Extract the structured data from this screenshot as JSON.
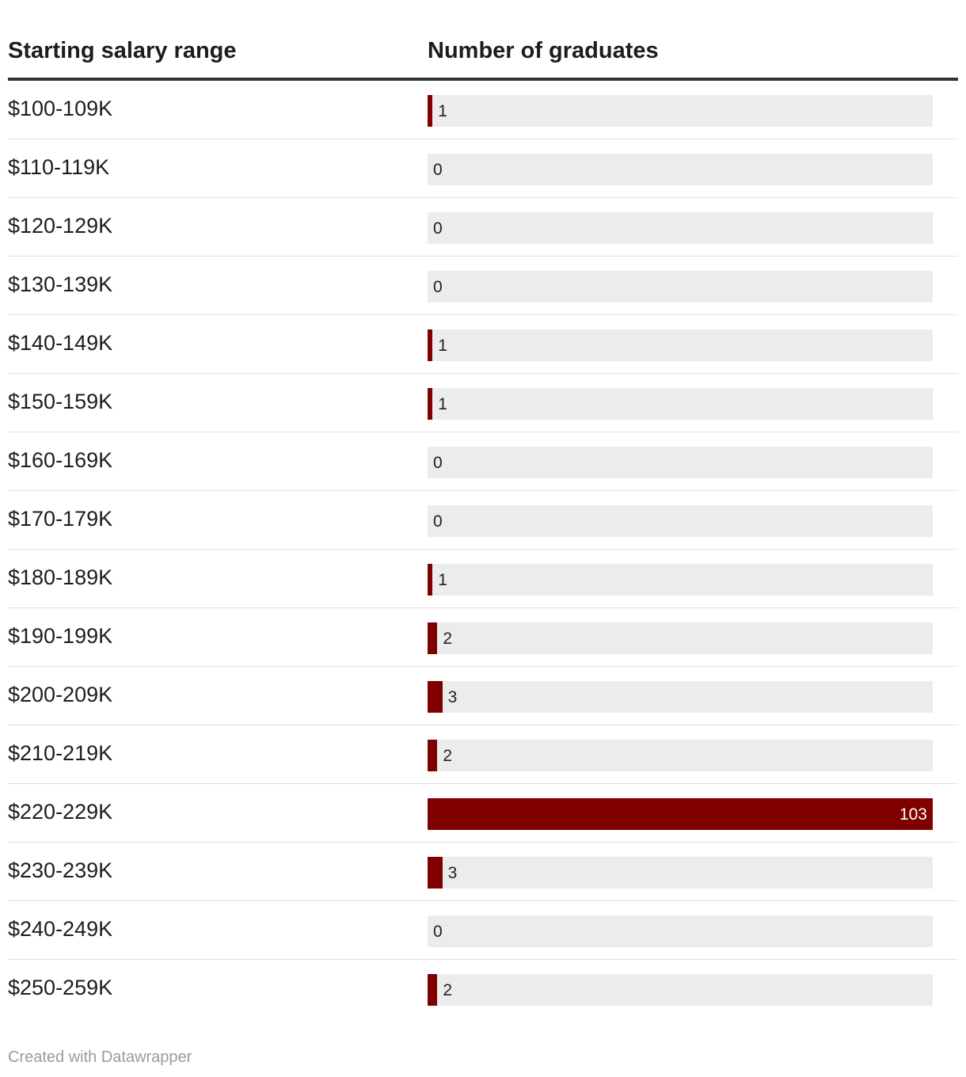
{
  "header": {
    "col_label": "Starting salary range",
    "col_value": "Number of graduates"
  },
  "colors": {
    "bar": "#800000",
    "track": "#ececec"
  },
  "chart_data": {
    "type": "bar",
    "orientation": "horizontal",
    "xlabel": "Number of graduates",
    "ylabel": "Starting salary range",
    "xlim": [
      0,
      103
    ],
    "categories": [
      "$100-109K",
      "$110-119K",
      "$120-129K",
      "$130-139K",
      "$140-149K",
      "$150-159K",
      "$160-169K",
      "$170-179K",
      "$180-189K",
      "$190-199K",
      "$200-209K",
      "$210-219K",
      "$220-229K",
      "$230-239K",
      "$240-249K",
      "$250-259K"
    ],
    "values": [
      1,
      0,
      0,
      0,
      1,
      1,
      0,
      0,
      1,
      2,
      3,
      2,
      103,
      3,
      0,
      2
    ]
  },
  "footer": {
    "credit": "Created with Datawrapper"
  }
}
